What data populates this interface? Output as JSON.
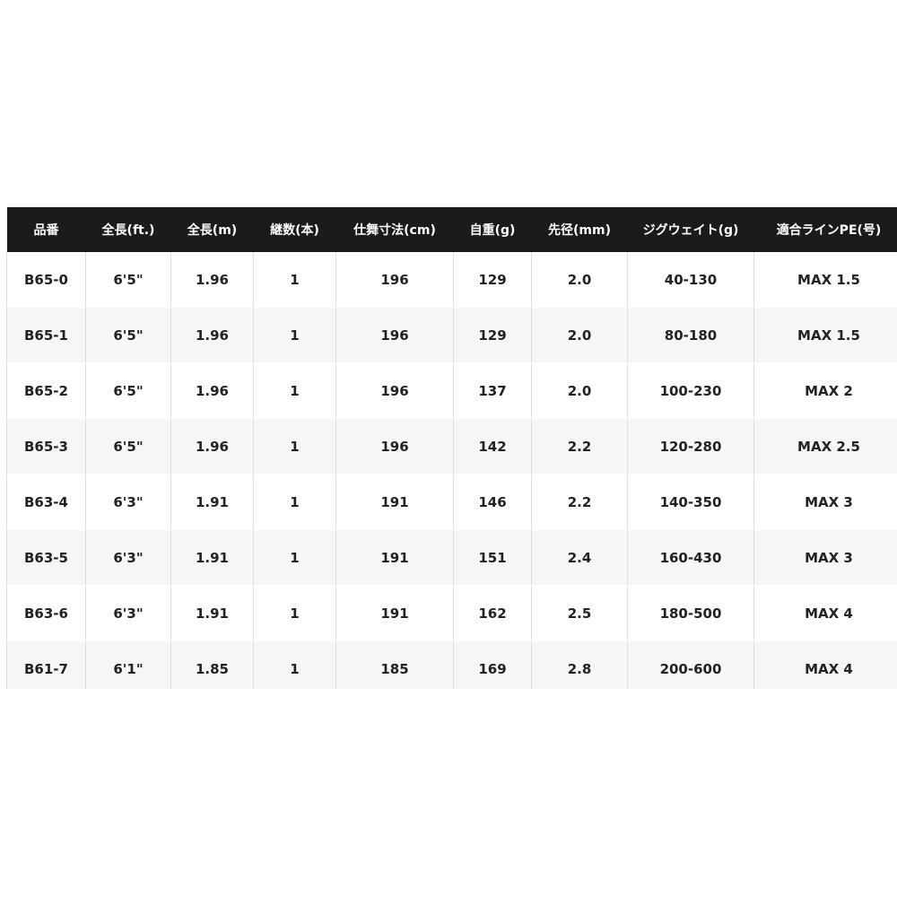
{
  "table": {
    "headers": [
      "品番",
      "全長(ft.)",
      "全長(m)",
      "継数(本)",
      "仕舞寸法(cm)",
      "自重(g)",
      "先径(mm)",
      "ジグウェイト(g)",
      "適合ラインPE(号)"
    ],
    "rows": [
      [
        "B65-0",
        "6'5\"",
        "1.96",
        "1",
        "196",
        "129",
        "2.0",
        "40-130",
        "MAX 1.5"
      ],
      [
        "B65-1",
        "6'5\"",
        "1.96",
        "1",
        "196",
        "129",
        "2.0",
        "80-180",
        "MAX 1.5"
      ],
      [
        "B65-2",
        "6'5\"",
        "1.96",
        "1",
        "196",
        "137",
        "2.0",
        "100-230",
        "MAX 2"
      ],
      [
        "B65-3",
        "6'5\"",
        "1.96",
        "1",
        "196",
        "142",
        "2.2",
        "120-280",
        "MAX 2.5"
      ],
      [
        "B63-4",
        "6'3\"",
        "1.91",
        "1",
        "191",
        "146",
        "2.2",
        "140-350",
        "MAX 3"
      ],
      [
        "B63-5",
        "6'3\"",
        "1.91",
        "1",
        "191",
        "151",
        "2.4",
        "160-430",
        "MAX 3"
      ],
      [
        "B63-6",
        "6'3\"",
        "1.91",
        "1",
        "191",
        "162",
        "2.5",
        "180-500",
        "MAX 4"
      ],
      [
        "B61-7",
        "6'1\"",
        "1.85",
        "1",
        "185",
        "169",
        "2.8",
        "200-600",
        "MAX 4"
      ]
    ]
  }
}
